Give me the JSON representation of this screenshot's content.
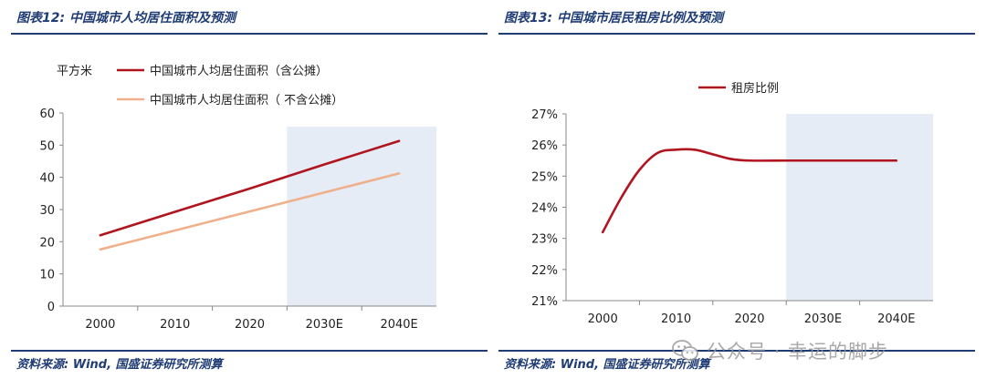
{
  "left": {
    "title": "图表12:  中国城市人均居住面积及预测",
    "source": "资料来源:  Wind, 国盛证券研究所测算"
  },
  "right": {
    "title": "图表13:  中国城市居民租房比例及预测",
    "source": "资料来源:  Wind, 国盛证券研究所测算"
  },
  "watermark": {
    "text": "公众号 · 幸运的脚步",
    "icon": "wechat-icon"
  },
  "colors": {
    "title": "#1f3c74",
    "series_dark": "#b0151f",
    "series_light": "#efb08c",
    "forecast_band": "#e6ecf6"
  },
  "chart_data": [
    {
      "type": "line",
      "title": "",
      "unit": "平方米",
      "categories": [
        "2000",
        "2010",
        "2020",
        "2030E",
        "2040E"
      ],
      "forecast_categories": [
        "2030E",
        "2040E"
      ],
      "ylim": [
        0,
        60
      ],
      "yticks": [
        0,
        10,
        20,
        30,
        40,
        50,
        60
      ],
      "grid": false,
      "legend": "top-left",
      "series": [
        {
          "name": "中国城市人均居住面积（含公摊）",
          "color": "#b0151f",
          "values": [
            22,
            29.3,
            36.5,
            44,
            51.3
          ]
        },
        {
          "name": "中国城市人均居住面积（ 不含公摊）",
          "color": "#efb08c",
          "values": [
            17.6,
            23.5,
            29.4,
            35.3,
            41.2
          ]
        }
      ]
    },
    {
      "type": "line",
      "title": "",
      "categories": [
        "2000",
        "2010",
        "2020",
        "2030E",
        "2040E"
      ],
      "forecast_categories": [
        "2030E",
        "2040E"
      ],
      "ylim": [
        21,
        27
      ],
      "yticks": [
        "21%",
        "22%",
        "23%",
        "24%",
        "25%",
        "26%",
        "27%"
      ],
      "ytick_values": [
        21,
        22,
        23,
        24,
        25,
        26,
        27
      ],
      "grid": false,
      "legend": "top-center",
      "series": [
        {
          "name": "租房比例",
          "color": "#b0151f",
          "x": [
            0,
            0.25,
            0.5,
            0.75,
            1.0,
            1.25,
            1.5,
            1.75,
            2.0,
            2.5,
            3.0,
            3.5,
            4.0
          ],
          "values": [
            23.2,
            24.3,
            25.2,
            25.75,
            25.85,
            25.85,
            25.7,
            25.55,
            25.5,
            25.5,
            25.5,
            25.5,
            25.5
          ]
        }
      ]
    }
  ]
}
